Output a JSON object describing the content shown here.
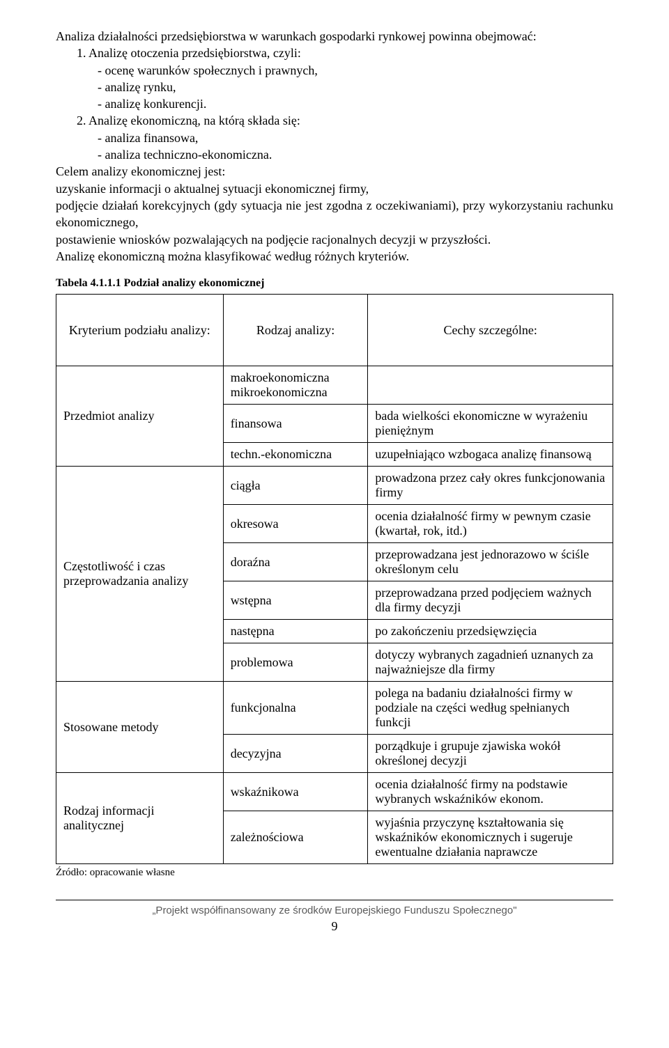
{
  "intro": {
    "line1": "Analiza działalności przedsiębiorstwa w warunkach gospodarki rynkowej powinna obejmować:",
    "item1": "1. Analizę otoczenia przedsiębiorstwa, czyli:",
    "item1a": "- ocenę warunków społecznych i prawnych,",
    "item1b": "- analizę rynku,",
    "item1c": "- analizę konkurencji.",
    "item2": "2. Analizę ekonomiczną, na którą składa się:",
    "item2a": "- analiza finansowa,",
    "item2b": "- analiza techniczno-ekonomiczna.",
    "celem": "Celem analizy ekonomicznej jest:",
    "bullet1": "uzyskanie informacji o aktualnej sytuacji ekonomicznej firmy,",
    "bullet2": "podjęcie działań korekcyjnych (gdy sytuacja nie jest zgodna z oczekiwaniami), przy wykorzystaniu rachunku ekonomicznego,",
    "bullet3": "postawienie wniosków pozwalających na podjęcie racjonalnych decyzji w przyszłości.",
    "closing": "Analizę ekonomiczną można klasyfikować według różnych kryteriów."
  },
  "table": {
    "caption": "Tabela 4.1.1.1 Podział analizy ekonomicznej",
    "headers": {
      "criteria": "Kryterium podziału analizy:",
      "type": "Rodzaj analizy:",
      "desc": "Cechy szczególne:"
    },
    "rows": [
      {
        "criteria": "Przedmiot analizy",
        "types": [
          {
            "type": "makroekonomiczna mikroekonomiczna",
            "desc": ""
          },
          {
            "type": "finansowa",
            "desc": "bada wielkości ekonomiczne w wyrażeniu pieniężnym"
          },
          {
            "type": "techn.-ekonomiczna",
            "desc": "uzupełniająco wzbogaca analizę finansową"
          }
        ]
      },
      {
        "criteria": "Częstotliwość i czas przeprowadzania analizy",
        "types": [
          {
            "type": "ciągła",
            "desc": "prowadzona przez cały okres funkcjonowania firmy"
          },
          {
            "type": "okresowa",
            "desc": "ocenia działalność firmy w pewnym czasie (kwartał, rok, itd.)"
          },
          {
            "type": "doraźna",
            "desc": "przeprowadzana jest jednorazowo w ściśle określonym celu"
          },
          {
            "type": "wstępna",
            "desc": "przeprowadzana przed podjęciem ważnych dla firmy decyzji"
          },
          {
            "type": "następna",
            "desc": "po zakończeniu przedsięwzięcia"
          },
          {
            "type": "problemowa",
            "desc": "dotyczy wybranych zagadnień uznanych za najważniejsze dla firmy"
          }
        ]
      },
      {
        "criteria": "Stosowane metody",
        "types": [
          {
            "type": "funkcjonalna",
            "desc": "polega na badaniu działalności firmy w podziale na części według spełnianych funkcji"
          },
          {
            "type": "decyzyjna",
            "desc": "porządkuje i grupuje zjawiska wokół określonej decyzji"
          }
        ]
      },
      {
        "criteria": "Rodzaj informacji analitycznej",
        "types": [
          {
            "type": "wskaźnikowa",
            "desc": "ocenia działalność firmy na podstawie wybranych wskaźników ekonom."
          },
          {
            "type": "zależnościowa",
            "desc": "wyjaśnia przyczynę kształtowania się wskaźników ekonomicznych i sugeruje ewentualne działania naprawcze"
          }
        ]
      }
    ],
    "source": "Źródło: opracowanie własne"
  },
  "footer": {
    "text": "„Projekt współfinansowany ze środków Europejskiego Funduszu Społecznego\"",
    "page_num": "9"
  }
}
